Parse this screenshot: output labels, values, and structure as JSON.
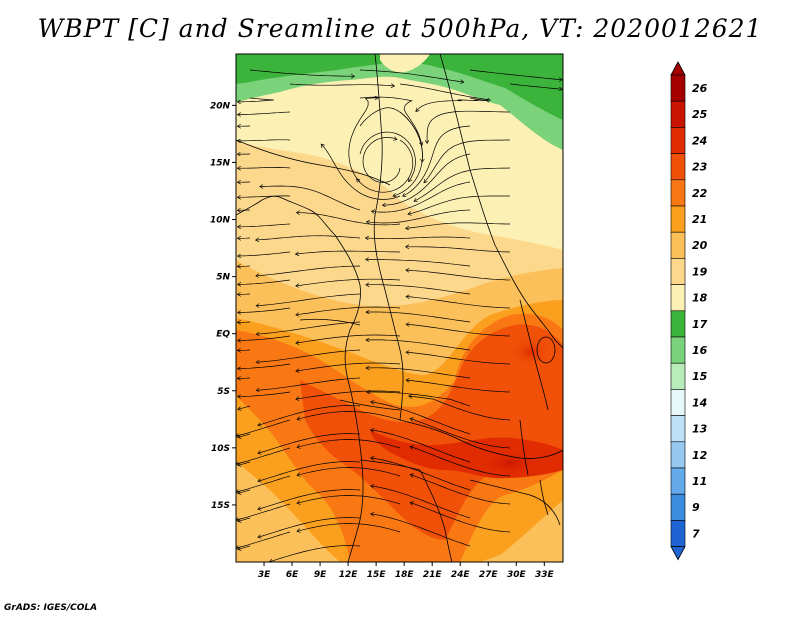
{
  "title": "WBPT [C] and Sreamline at 500hPa, VT: 2020012621",
  "footer": "GrADS: IGES/COLA",
  "map": {
    "lat_labels": [
      {
        "label": "20N",
        "lat": 20
      },
      {
        "label": "15N",
        "lat": 15
      },
      {
        "label": "10N",
        "lat": 10
      },
      {
        "label": "5N",
        "lat": 5
      },
      {
        "label": "EQ",
        "lat": 0
      },
      {
        "label": "5S",
        "lat": -5
      },
      {
        "label": "10S",
        "lat": -10
      },
      {
        "label": "15S",
        "lat": -15
      }
    ],
    "lon_labels": [
      {
        "label": "3E",
        "lon": 3
      },
      {
        "label": "6E",
        "lon": 6
      },
      {
        "label": "9E",
        "lon": 9
      },
      {
        "label": "12E",
        "lon": 12
      },
      {
        "label": "15E",
        "lon": 15
      },
      {
        "label": "18E",
        "lon": 18
      },
      {
        "label": "21E",
        "lon": 21
      },
      {
        "label": "24E",
        "lon": 24
      },
      {
        "label": "27E",
        "lon": 27
      },
      {
        "label": "30E",
        "lon": 30
      },
      {
        "label": "33E",
        "lon": 33
      }
    ],
    "lon_range": [
      0,
      35
    ],
    "lat_range": [
      -20,
      24.5
    ]
  },
  "colorbar": {
    "levels": [
      {
        "label": "26",
        "color": "#a50000"
      },
      {
        "label": "25",
        "color": "#c81400"
      },
      {
        "label": "24",
        "color": "#e02c00"
      },
      {
        "label": "23",
        "color": "#f05008"
      },
      {
        "label": "22",
        "color": "#fa7814"
      },
      {
        "label": "21",
        "color": "#fba01e"
      },
      {
        "label": "20",
        "color": "#fcc05a"
      },
      {
        "label": "19",
        "color": "#fcd88c"
      },
      {
        "label": "18",
        "color": "#fdf0b4"
      },
      {
        "label": "17",
        "color": "#3cb43c"
      },
      {
        "label": "16",
        "color": "#7ad27a"
      },
      {
        "label": "15",
        "color": "#b8ecb8"
      },
      {
        "label": "14",
        "color": "#e6f8f8"
      },
      {
        "label": "13",
        "color": "#c0e0f8"
      },
      {
        "label": "12",
        "color": "#96c8f0"
      },
      {
        "label": "11",
        "color": "#64aaea"
      },
      {
        "label": "9",
        "color": "#3c8ce0"
      },
      {
        "label": "7",
        "color": "#1e64d2"
      }
    ],
    "top_arrow_color": "#a50000",
    "bottom_arrow_color": "#1e64d2"
  }
}
